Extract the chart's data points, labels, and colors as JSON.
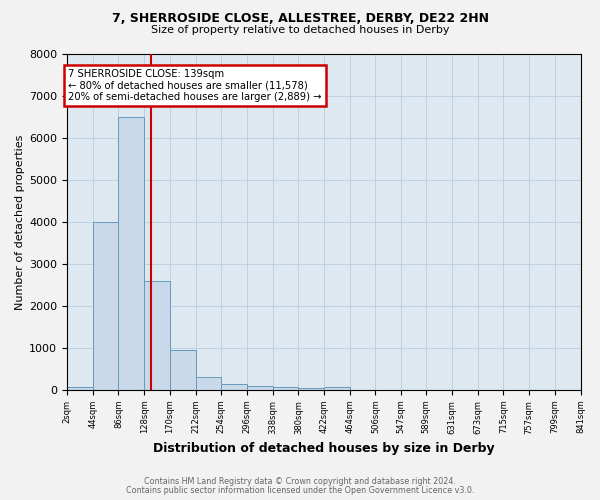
{
  "title_line1": "7, SHERROSIDE CLOSE, ALLESTREE, DERBY, DE22 2HN",
  "title_line2": "Size of property relative to detached houses in Derby",
  "xlabel": "Distribution of detached houses by size in Derby",
  "ylabel": "Number of detached properties",
  "footnote1": "Contains HM Land Registry data © Crown copyright and database right 2024.",
  "footnote2": "Contains public sector information licensed under the Open Government Licence v3.0.",
  "bin_edges": [
    2,
    44,
    86,
    128,
    170,
    212,
    254,
    296,
    338,
    380,
    422,
    464,
    506,
    547,
    589,
    631,
    673,
    715,
    757,
    799,
    841
  ],
  "bar_heights": [
    80,
    4000,
    6500,
    2600,
    960,
    320,
    130,
    100,
    80,
    50,
    60,
    0,
    0,
    0,
    0,
    0,
    0,
    0,
    0,
    0
  ],
  "bar_color": "#c9d9ea",
  "bar_edge_color": "#6699bb",
  "property_size": 139,
  "vline_color": "#cc0000",
  "annotation_text": "7 SHERROSIDE CLOSE: 139sqm\n← 80% of detached houses are smaller (11,578)\n20% of semi-detached houses are larger (2,889) →",
  "annotation_box_color": "#ffffff",
  "annotation_box_edge": "#cc0000",
  "ylim": [
    0,
    8000
  ],
  "yticks": [
    0,
    1000,
    2000,
    3000,
    4000,
    5000,
    6000,
    7000,
    8000
  ],
  "grid_color": "#bbccdd",
  "bg_color": "#dde8f0",
  "fig_bg_color": "#f2f2f2",
  "title_fontsize": 9,
  "subtitle_fontsize": 8,
  "footnote_color": "#666666"
}
